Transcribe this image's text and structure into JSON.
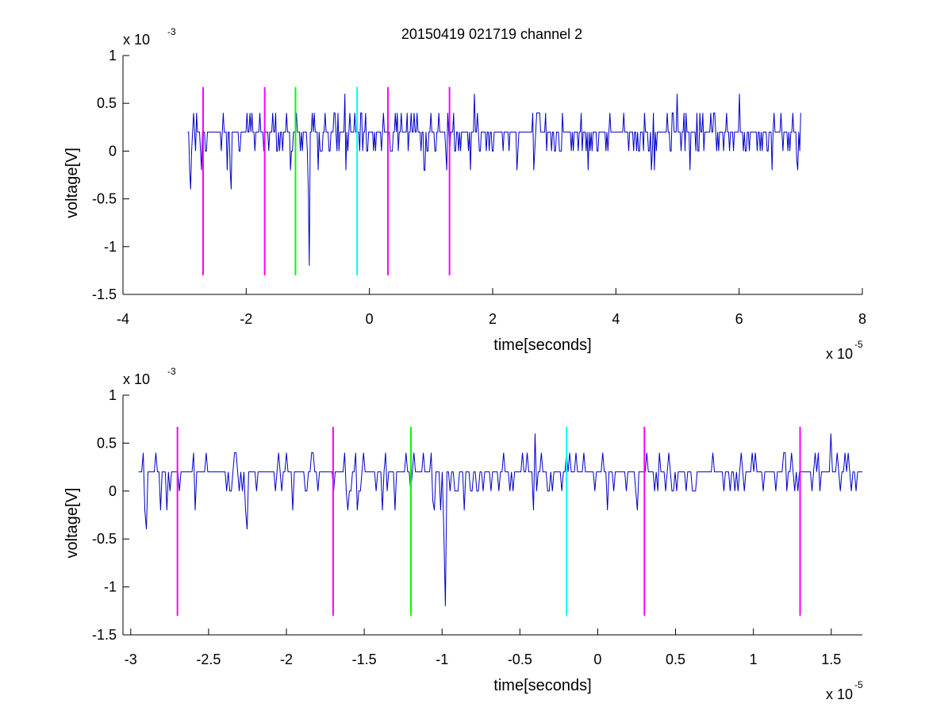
{
  "figure": {
    "title": "20150419 021719 channel 2"
  },
  "chart_data": [
    {
      "type": "line",
      "title": "20150419 021719 channel 2",
      "xlabel": "time[seconds]",
      "ylabel": "voltage[V]",
      "x_exponent_label": "x 10",
      "x_exponent": "-5",
      "y_exponent_label": "x 10",
      "y_exponent": "-3",
      "xlim": [
        -4,
        8
      ],
      "ylim": [
        -1.5,
        1
      ],
      "xticks": [
        -4,
        -2,
        0,
        2,
        4,
        6,
        8
      ],
      "xtick_labels": [
        "-4",
        "-2",
        "0",
        "2",
        "4",
        "6",
        "8"
      ],
      "yticks": [
        -1.5,
        -1,
        -0.5,
        0,
        0.5,
        1
      ],
      "ytick_labels": [
        "-1.5",
        "-1",
        "-0.5",
        "0",
        "0.5",
        "1"
      ],
      "grid": false,
      "colors": {
        "signal": "#0000c8",
        "marker_magenta": "#ff00ff",
        "marker_green": "#00ff00",
        "marker_cyan": "#00ffff"
      },
      "signal": {
        "x_start": -2.95,
        "x_end": 7.0,
        "levels": [
          0,
          0.2,
          0.4
        ],
        "dips": [
          [
            -2.9,
            -0.4
          ],
          [
            -2.25,
            -0.4
          ],
          [
            -0.98,
            -1.2
          ],
          [
            6.95,
            -0.2
          ]
        ],
        "peaks": [
          [
            -0.4,
            0.6
          ],
          [
            1.7,
            0.6
          ],
          [
            5.0,
            0.6
          ],
          [
            6.0,
            0.6
          ]
        ]
      },
      "markers": [
        {
          "x": -2.7,
          "color": "#ff00ff",
          "y_from": -1.3,
          "y_to": 0.67
        },
        {
          "x": -1.7,
          "color": "#ff00ff",
          "y_from": -1.3,
          "y_to": 0.67
        },
        {
          "x": -1.2,
          "color": "#00ff00",
          "y_from": -1.3,
          "y_to": 0.67
        },
        {
          "x": -0.2,
          "color": "#00ffff",
          "y_from": -1.3,
          "y_to": 0.67
        },
        {
          "x": 0.3,
          "color": "#ff00ff",
          "y_from": -1.3,
          "y_to": 0.67
        },
        {
          "x": 1.3,
          "color": "#ff00ff",
          "y_from": -1.3,
          "y_to": 0.67
        }
      ]
    },
    {
      "type": "line",
      "title": "",
      "xlabel": "time[seconds]",
      "ylabel": "voltage[V]",
      "x_exponent_label": "x 10",
      "x_exponent": "-5",
      "y_exponent_label": "x 10",
      "y_exponent": "-3",
      "xlim": [
        -3.05,
        1.7
      ],
      "ylim": [
        -1.5,
        1
      ],
      "xticks": [
        -3,
        -2.5,
        -2,
        -1.5,
        -1,
        -0.5,
        0,
        0.5,
        1,
        1.5
      ],
      "xtick_labels": [
        "-3",
        "-2.5",
        "-2",
        "-1.5",
        "-1",
        "-0.5",
        "0",
        "0.5",
        "1",
        "1.5"
      ],
      "yticks": [
        -1.5,
        -1,
        -0.5,
        0,
        0.5,
        1
      ],
      "ytick_labels": [
        "-1.5",
        "-1",
        "-0.5",
        "0",
        "0.5",
        "1"
      ],
      "grid": false,
      "colors": {
        "signal": "#0000c8",
        "marker_magenta": "#ff00ff",
        "marker_green": "#00ff00",
        "marker_cyan": "#00ffff"
      },
      "signal": {
        "x_start": -2.95,
        "x_end": 1.7,
        "levels": [
          0,
          0.2,
          0.4
        ],
        "dips": [
          [
            -2.9,
            -0.4
          ],
          [
            -2.25,
            -0.4
          ],
          [
            -0.98,
            -1.2
          ],
          [
            -1.05,
            -0.2
          ]
        ],
        "peaks": [
          [
            -0.4,
            0.6
          ],
          [
            1.5,
            0.6
          ],
          [
            -0.6,
            0.4
          ],
          [
            -1.55,
            0.4
          ]
        ]
      },
      "markers": [
        {
          "x": -2.7,
          "color": "#ff00ff",
          "y_from": -1.3,
          "y_to": 0.67
        },
        {
          "x": -1.7,
          "color": "#ff00ff",
          "y_from": -1.3,
          "y_to": 0.67
        },
        {
          "x": -1.2,
          "color": "#00ff00",
          "y_from": -1.3,
          "y_to": 0.67
        },
        {
          "x": -0.2,
          "color": "#00ffff",
          "y_from": -1.3,
          "y_to": 0.67
        },
        {
          "x": 0.3,
          "color": "#ff00ff",
          "y_from": -1.3,
          "y_to": 0.67
        },
        {
          "x": 1.3,
          "color": "#ff00ff",
          "y_from": -1.3,
          "y_to": 0.67
        }
      ]
    }
  ]
}
